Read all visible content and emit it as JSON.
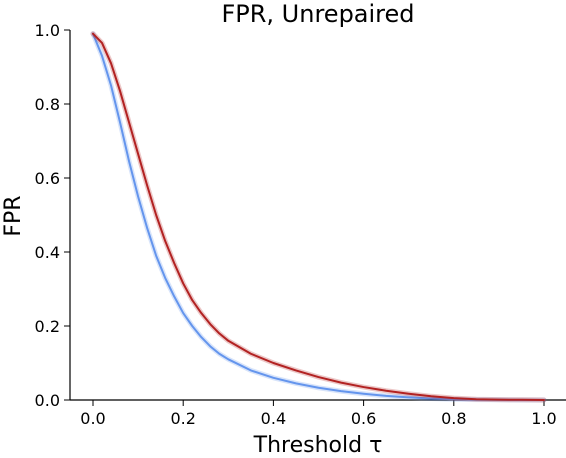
{
  "chart_data": {
    "type": "line",
    "title": "FPR, Unrepaired",
    "xlabel": "Threshold τ",
    "ylabel": "FPR",
    "xlim": [
      0.0,
      1.0
    ],
    "ylim": [
      0.0,
      1.0
    ],
    "xticks": [
      "0.0",
      "0.2",
      "0.4",
      "0.6",
      "0.8",
      "1.0"
    ],
    "yticks": [
      "0.0",
      "0.2",
      "0.4",
      "0.6",
      "0.8",
      "1.0"
    ],
    "grid": false,
    "series": [
      {
        "color": "#6495ed",
        "x": [
          0.0,
          0.02,
          0.04,
          0.06,
          0.08,
          0.1,
          0.12,
          0.14,
          0.16,
          0.18,
          0.2,
          0.22,
          0.24,
          0.26,
          0.28,
          0.3,
          0.35,
          0.4,
          0.45,
          0.5,
          0.55,
          0.6,
          0.65,
          0.7,
          0.75,
          0.8,
          0.85,
          0.9,
          0.95,
          1.0
        ],
        "y": [
          0.99,
          0.93,
          0.85,
          0.75,
          0.645,
          0.55,
          0.465,
          0.39,
          0.33,
          0.28,
          0.235,
          0.2,
          0.17,
          0.145,
          0.125,
          0.11,
          0.08,
          0.06,
          0.045,
          0.033,
          0.024,
          0.017,
          0.011,
          0.007,
          0.004,
          0.002,
          0.001,
          0.0005,
          0.0,
          0.0
        ]
      },
      {
        "color": "#b22222",
        "x": [
          0.0,
          0.02,
          0.04,
          0.06,
          0.08,
          0.1,
          0.12,
          0.14,
          0.16,
          0.18,
          0.2,
          0.22,
          0.24,
          0.26,
          0.28,
          0.3,
          0.35,
          0.4,
          0.45,
          0.5,
          0.55,
          0.6,
          0.65,
          0.7,
          0.75,
          0.8,
          0.85,
          0.9,
          0.95,
          1.0
        ],
        "y": [
          0.99,
          0.965,
          0.91,
          0.835,
          0.75,
          0.665,
          0.58,
          0.5,
          0.43,
          0.37,
          0.315,
          0.27,
          0.235,
          0.205,
          0.18,
          0.16,
          0.125,
          0.1,
          0.08,
          0.062,
          0.047,
          0.035,
          0.025,
          0.017,
          0.01,
          0.005,
          0.002,
          0.001,
          0.0005,
          0.0
        ]
      }
    ]
  }
}
